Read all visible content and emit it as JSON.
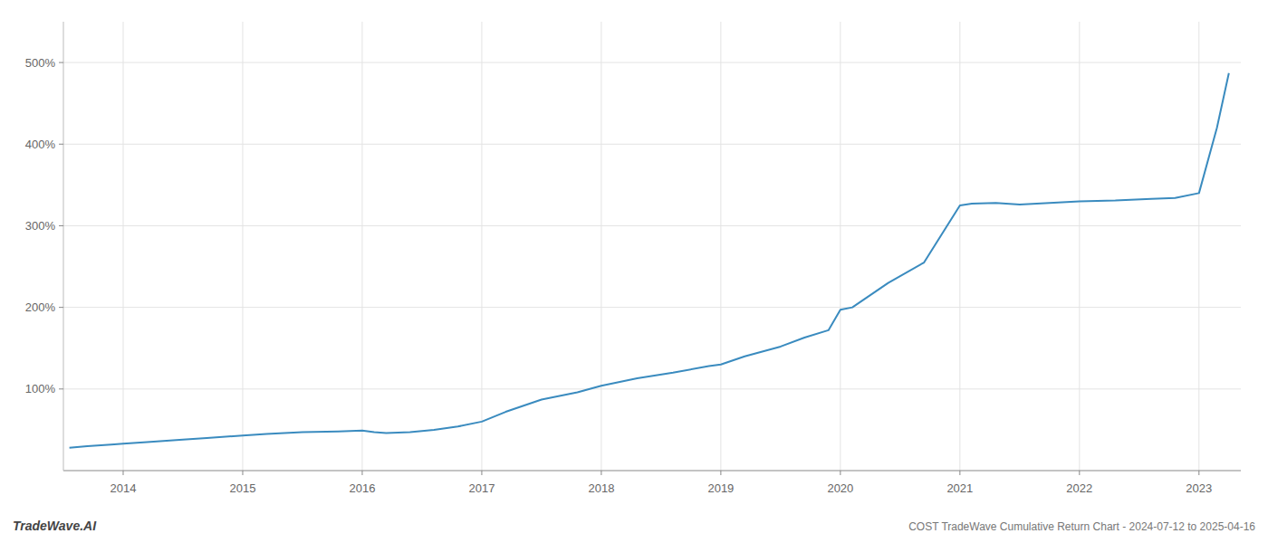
{
  "chart_data": {
    "type": "line",
    "title": "COST TradeWave Cumulative Return Chart - 2024-07-12 to 2025-04-16",
    "annotations": [
      "TradeWave.AI"
    ],
    "x": [
      2013.55,
      2013.7,
      2013.9,
      2014.0,
      2014.2,
      2014.5,
      2014.7,
      2015.0,
      2015.2,
      2015.5,
      2015.8,
      2016.0,
      2016.1,
      2016.2,
      2016.4,
      2016.6,
      2016.8,
      2017.0,
      2017.2,
      2017.5,
      2017.8,
      2018.0,
      2018.3,
      2018.6,
      2018.9,
      2019.0,
      2019.2,
      2019.5,
      2019.7,
      2019.9,
      2020.0,
      2020.1,
      2020.4,
      2020.7,
      2021.0,
      2021.1,
      2021.3,
      2021.5,
      2022.0,
      2022.3,
      2022.6,
      2022.8,
      2023.0,
      2023.15,
      2023.25
    ],
    "values": [
      28,
      30,
      32,
      33,
      35,
      38,
      40,
      43,
      45,
      47,
      48,
      49,
      47,
      46,
      47,
      50,
      54,
      60,
      72,
      87,
      96,
      104,
      113,
      120,
      128,
      130,
      140,
      152,
      163,
      172,
      197,
      200,
      230,
      255,
      325,
      327,
      328,
      326,
      330,
      331,
      333,
      334,
      340,
      420,
      487
    ],
    "color": "#3a8bbf",
    "xlim": [
      2013.5,
      2023.35
    ],
    "xticks": [
      2014,
      2015,
      2016,
      2017,
      2018,
      2019,
      2020,
      2021,
      2022,
      2023
    ],
    "ylim": [
      0,
      550
    ],
    "yticks": [
      {
        "value": 100,
        "label": "100%"
      },
      {
        "value": 200,
        "label": "200%"
      },
      {
        "value": 300,
        "label": "300%"
      },
      {
        "value": 400,
        "label": "400%"
      },
      {
        "value": 500,
        "label": "500%"
      }
    ],
    "grid": true
  }
}
